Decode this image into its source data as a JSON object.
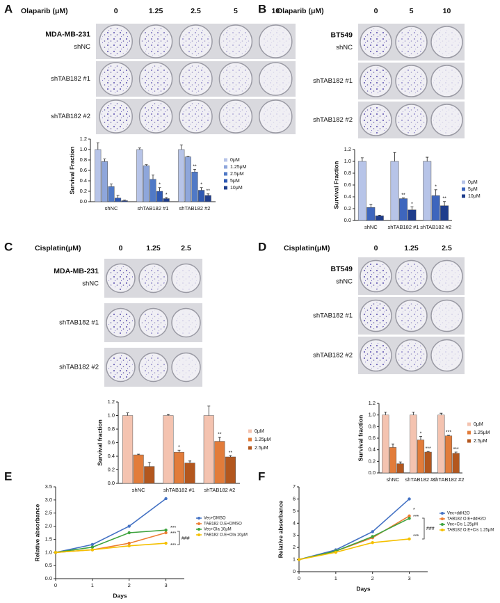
{
  "panels": [
    {
      "letter": "A",
      "drug": "Olaparib (μM)",
      "concentrations": [
        "0",
        "1.25",
        "2.5",
        "5",
        "10"
      ],
      "cell_line": "MDA-MB-231",
      "rows": [
        "shNC",
        "shTAB182 #1",
        "shTAB182 #2"
      ]
    },
    {
      "letter": "B",
      "drug": "Olaparib (μM)",
      "concentrations": [
        "0",
        "5",
        "10"
      ],
      "cell_line": "BT549",
      "rows": [
        "shNC",
        "shTAB182 #1",
        "shTAB182 #2"
      ]
    },
    {
      "letter": "C",
      "drug": "Cisplatin(μM)",
      "concentrations": [
        "0",
        "1.25",
        "2.5"
      ],
      "cell_line": "MDA-MB-231",
      "rows": [
        "shNC",
        "shTAB182 #1",
        "shTAB182 #2"
      ]
    },
    {
      "letter": "D",
      "drug": "Cisplatin(μM)",
      "concentrations": [
        "0",
        "1.25",
        "2.5"
      ],
      "cell_line": "BT549",
      "rows": [
        "shNC",
        "shTAB182 #1",
        "shTAB182 #2"
      ]
    },
    {
      "letter": "E"
    },
    {
      "letter": "F"
    }
  ],
  "chart_data": [
    {
      "type": "bar",
      "y_label": "Survival Fraction",
      "categories": [
        "shNC",
        "shTAB182 #1",
        "shTAB182 #2"
      ],
      "ylim": [
        0,
        1.2
      ],
      "yticks": [
        {
          "value": 0,
          "label": "0.0"
        },
        {
          "value": 0.2,
          "label": "0.2"
        },
        {
          "value": 0.4,
          "label": "0.4"
        },
        {
          "value": 0.6,
          "label": "0.6"
        },
        {
          "value": 0.8,
          "label": "0.8"
        },
        {
          "value": 1,
          "label": "1.0"
        },
        {
          "value": 1.2,
          "label": "1.2"
        }
      ],
      "series": [
        {
          "name": "0μM",
          "color": "#b7c4e8",
          "values": [
            1.0,
            1.0,
            1.0
          ],
          "errors": [
            0.13,
            0.03,
            0.09
          ],
          "significance": [
            null,
            null,
            null
          ]
        },
        {
          "name": "1.25μM",
          "color": "#8ea6db",
          "values": [
            0.77,
            0.69,
            0.86
          ],
          "errors": [
            0.05,
            0.02,
            0.01
          ],
          "significance": [
            null,
            null,
            null
          ]
        },
        {
          "name": "2.5μM",
          "color": "#5079c6",
          "values": [
            0.29,
            0.43,
            0.57
          ],
          "errors": [
            0.05,
            0.08,
            0.05
          ],
          "significance": [
            null,
            null,
            "**"
          ]
        },
        {
          "name": "5μM",
          "color": "#2e58b3",
          "values": [
            0.07,
            0.2,
            0.22
          ],
          "errors": [
            0.05,
            0.07,
            0.05
          ],
          "significance": [
            null,
            "*",
            "*"
          ]
        },
        {
          "name": "10μM",
          "color": "#1f3d8c",
          "values": [
            0.02,
            0.06,
            0.12
          ],
          "errors": [
            0.01,
            0.02,
            0.03
          ],
          "significance": [
            null,
            "*",
            "**"
          ]
        }
      ]
    },
    {
      "type": "bar",
      "y_label": "Survival Fraction",
      "categories": [
        "shNC",
        "shTAB182 #1",
        "shTAB182 #2"
      ],
      "ylim": [
        0,
        1.2
      ],
      "yticks": [
        {
          "value": 0,
          "label": "0.0"
        },
        {
          "value": 0.2,
          "label": "0.2"
        },
        {
          "value": 0.4,
          "label": "0.4"
        },
        {
          "value": 0.6,
          "label": "0.6"
        },
        {
          "value": 0.8,
          "label": "0.8"
        },
        {
          "value": 1,
          "label": "1.0"
        },
        {
          "value": 1.2,
          "label": "1.2"
        }
      ],
      "series": [
        {
          "name": "0μM",
          "color": "#b7c4e8",
          "values": [
            1.0,
            1.0,
            1.0
          ],
          "errors": [
            0.06,
            0.15,
            0.07
          ],
          "significance": [
            null,
            null,
            null
          ]
        },
        {
          "name": "5μM",
          "color": "#3e66bd",
          "values": [
            0.22,
            0.37,
            0.42
          ],
          "errors": [
            0.05,
            0.01,
            0.1
          ],
          "significance": [
            null,
            "**",
            "*"
          ]
        },
        {
          "name": "10μM",
          "color": "#1f3d8c",
          "values": [
            0.08,
            0.18,
            0.25
          ],
          "errors": [
            0.01,
            0.05,
            0.07
          ],
          "significance": [
            null,
            "*",
            "**"
          ]
        }
      ]
    },
    {
      "type": "bar",
      "y_label": "Survival fraction",
      "categories": [
        "shNC",
        "shTAB182 #1",
        "shTAB182 #2"
      ],
      "ylim": [
        0,
        1.2
      ],
      "yticks": [
        {
          "value": 0,
          "label": "0.0"
        },
        {
          "value": 0.2,
          "label": "0.2"
        },
        {
          "value": 0.4,
          "label": "0.4"
        },
        {
          "value": 0.6,
          "label": "0.6"
        },
        {
          "value": 0.8,
          "label": "0.8"
        },
        {
          "value": 1,
          "label": "1.0"
        },
        {
          "value": 1.2,
          "label": "1.2"
        }
      ],
      "series": [
        {
          "name": "0μM",
          "color": "#f4c3b0",
          "values": [
            1.0,
            1.0,
            1.0
          ],
          "errors": [
            0.04,
            0.02,
            0.14
          ],
          "significance": [
            null,
            null,
            null
          ]
        },
        {
          "name": "1.25μM",
          "color": "#e27c3a",
          "values": [
            0.42,
            0.46,
            0.62
          ],
          "errors": [
            0.01,
            0.03,
            0.06
          ],
          "significance": [
            null,
            "*",
            "**"
          ]
        },
        {
          "name": "2.5μM",
          "color": "#b3571e",
          "values": [
            0.25,
            0.3,
            0.39
          ],
          "errors": [
            0.06,
            0.03,
            0.02
          ],
          "significance": [
            null,
            null,
            "**"
          ]
        }
      ]
    },
    {
      "type": "bar",
      "y_label": "Survival fraction",
      "categories": [
        "shNC",
        "shTAB182 #1",
        "shTAB182 #2"
      ],
      "ylim": [
        0,
        1.2
      ],
      "yticks": [
        {
          "value": 0,
          "label": "0.0"
        },
        {
          "value": 0.2,
          "label": "0.2"
        },
        {
          "value": 0.4,
          "label": "0.4"
        },
        {
          "value": 0.6,
          "label": "0.6"
        },
        {
          "value": 0.8,
          "label": "0.8"
        },
        {
          "value": 1,
          "label": "1.0"
        },
        {
          "value": 1.2,
          "label": "1.2"
        }
      ],
      "series": [
        {
          "name": "0μM",
          "color": "#f4c3b0",
          "values": [
            1.0,
            1.0,
            1.0
          ],
          "errors": [
            0.05,
            0.05,
            0.03
          ],
          "significance": [
            null,
            null,
            null
          ]
        },
        {
          "name": "1.25μM",
          "color": "#e27c3a",
          "values": [
            0.44,
            0.57,
            0.64
          ],
          "errors": [
            0.06,
            0.06,
            0.01
          ],
          "significance": [
            null,
            "*",
            "***"
          ]
        },
        {
          "name": "2.5μM",
          "color": "#b3571e",
          "values": [
            0.16,
            0.36,
            0.34
          ],
          "errors": [
            0.03,
            0.01,
            0.02
          ],
          "significance": [
            null,
            "***",
            "***"
          ]
        }
      ]
    },
    {
      "type": "line",
      "x_label": "Days",
      "y_label": "Relative absorbance",
      "x": [
        0,
        1,
        2,
        3
      ],
      "xlim": [
        0,
        3.5
      ],
      "xticks": [
        0,
        1,
        2,
        3
      ],
      "ylim": [
        0,
        3.5
      ],
      "yticks": [
        {
          "value": 0,
          "label": "0.0"
        },
        {
          "value": 0.5,
          "label": "0.5"
        },
        {
          "value": 1,
          "label": "1.0"
        },
        {
          "value": 1.5,
          "label": "1.5"
        },
        {
          "value": 2,
          "label": "2.0"
        },
        {
          "value": 2.5,
          "label": "2.5"
        },
        {
          "value": 3,
          "label": "3.0"
        },
        {
          "value": 3.5,
          "label": "3.5"
        }
      ],
      "series": [
        {
          "name": "Vec+DMSO",
          "color": "#4472c4",
          "values": [
            1.0,
            1.3,
            2.0,
            3.05
          ]
        },
        {
          "name": "TAB182 O.E+DMSO",
          "color": "#ed7d31",
          "values": [
            1.0,
            1.1,
            1.35,
            1.75
          ]
        },
        {
          "name": "Vec+Ola 10μM",
          "color": "#3ea33e",
          "values": [
            1.0,
            1.2,
            1.75,
            1.85
          ]
        },
        {
          "name": "TAB182 O.E+Ola 10μM",
          "color": "#f5c000",
          "values": [
            1.0,
            1.1,
            1.25,
            1.35
          ]
        }
      ],
      "annotations": [
        "***",
        "***",
        "***",
        "###"
      ]
    },
    {
      "type": "line",
      "x_label": "Days",
      "y_label": "Relative absorbance",
      "x": [
        0,
        1,
        2,
        3
      ],
      "xlim": [
        0,
        3.5
      ],
      "xticks": [
        0,
        1,
        2,
        3
      ],
      "ylim": [
        0,
        7
      ],
      "yticks": [
        0,
        1,
        2,
        3,
        4,
        5,
        6,
        7
      ],
      "series": [
        {
          "name": "Vec+ddH2O",
          "color": "#4472c4",
          "values": [
            1.0,
            1.8,
            3.3,
            6.0
          ]
        },
        {
          "name": "TAB182 O.E+ddH2O",
          "color": "#ed7d31",
          "values": [
            1.0,
            1.7,
            2.8,
            4.6
          ]
        },
        {
          "name": "Vec+Cis 1.25μM",
          "color": "#3ea33e",
          "values": [
            1.0,
            1.7,
            2.9,
            4.4
          ]
        },
        {
          "name": "TAB182 O.E+Cis 1.25μM",
          "color": "#f5c000",
          "values": [
            1.0,
            1.6,
            2.4,
            2.7
          ]
        }
      ],
      "annotations": [
        "*",
        "***",
        "***",
        "###"
      ]
    }
  ]
}
